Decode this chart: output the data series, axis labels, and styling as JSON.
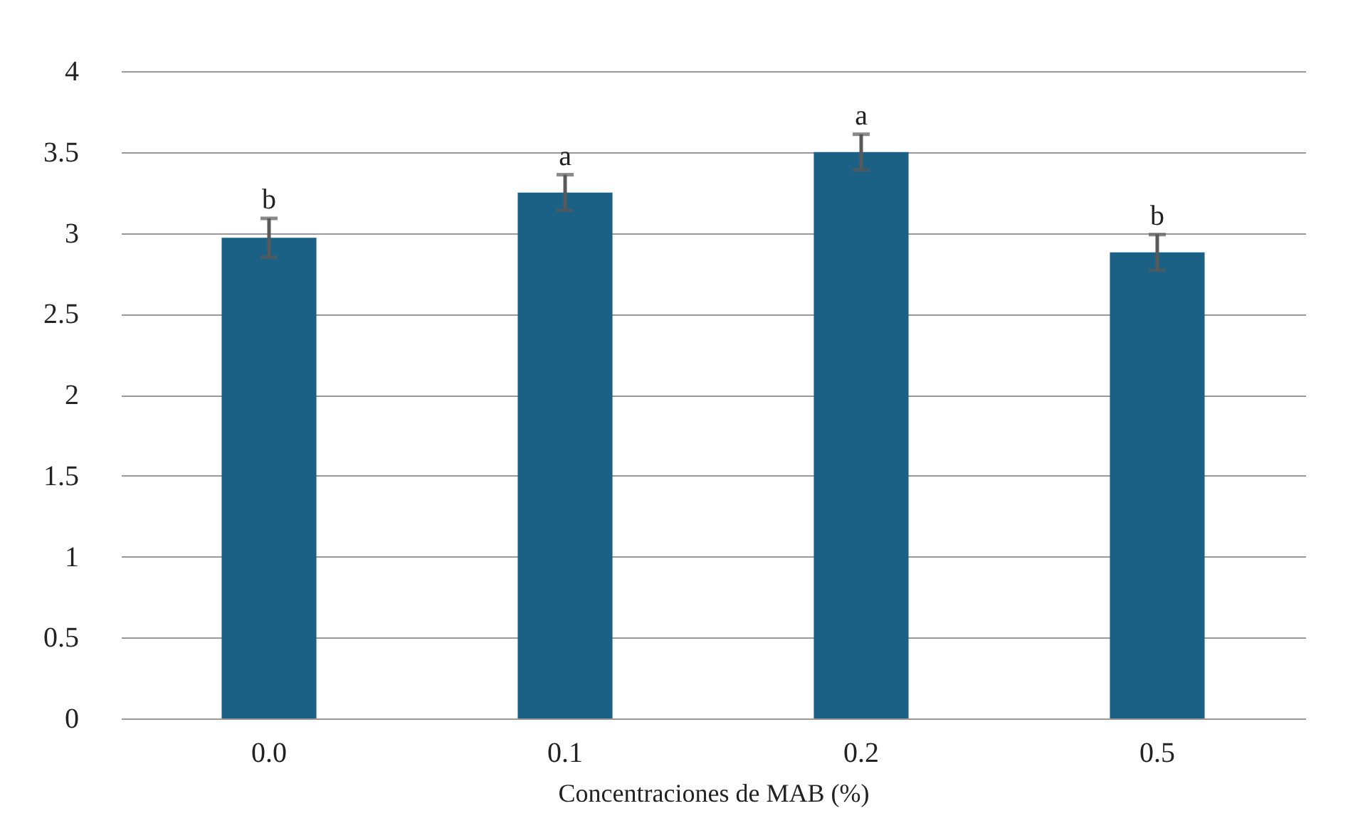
{
  "chart_data": {
    "type": "bar",
    "xlabel": "Concentraciones de MAB (%)",
    "categories": [
      "0.0",
      "0.1",
      "0.2",
      "0.5"
    ],
    "values": [
      2.97,
      3.25,
      3.5,
      2.88
    ],
    "color": "#1a6185",
    "errors": [
      0.12,
      0.11,
      0.11,
      0.11
    ],
    "ylim": [
      0,
      4
    ],
    "yticks": [
      0,
      0.5,
      1,
      1.5,
      2,
      2.5,
      3,
      3.5,
      4
    ],
    "grid": "y",
    "annotations": [
      {
        "text": "b",
        "x": "0.0",
        "y": 3.09
      },
      {
        "text": "a",
        "x": "0.1",
        "y": 3.36
      },
      {
        "text": "a",
        "x": "0.2",
        "y": 3.61
      },
      {
        "text": "b",
        "x": "0.5",
        "y": 2.99
      }
    ]
  }
}
